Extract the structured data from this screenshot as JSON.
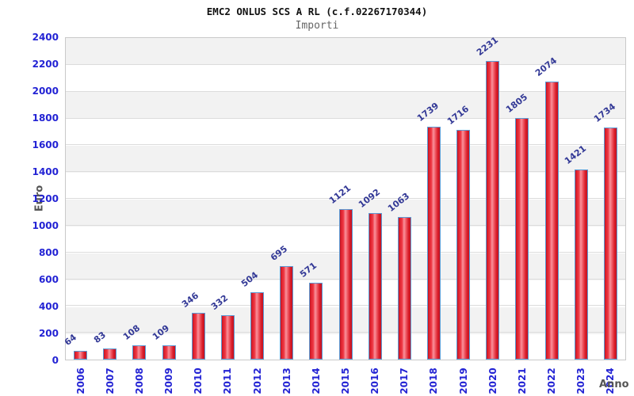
{
  "header": {
    "title": "EMC2 ONLUS SCS A RL (c.f.02267170344)",
    "subtitle": "Importi"
  },
  "chart_data": {
    "type": "bar",
    "title": "EMC2 ONLUS SCS A RL (c.f.02267170344)",
    "subtitle": "Importi",
    "xlabel": "Anno",
    "ylabel": "Euro",
    "categories": [
      "2006",
      "2007",
      "2008",
      "2009",
      "2010",
      "2011",
      "2012",
      "2013",
      "2014",
      "2015",
      "2016",
      "2017",
      "2018",
      "2019",
      "2020",
      "2021",
      "2022",
      "2023",
      "2024"
    ],
    "values": [
      64,
      83,
      108,
      109,
      346,
      332,
      504,
      695,
      571,
      1121,
      1092,
      1063,
      1739,
      1716,
      2231,
      1805,
      2074,
      1421,
      1734
    ],
    "ylim": [
      0,
      2400
    ],
    "ytick_step": 200,
    "grid": "horizontal-bands-alternating",
    "legend": "none",
    "colors": {
      "bar_fill": "#ee3642",
      "bar_edge": "#5b9bd5",
      "tick_label": "#2323d4",
      "value_label": "#323896",
      "axis_title": "#555555",
      "band": "#f2f2f2",
      "plot_border": "#c9c9c9"
    }
  }
}
